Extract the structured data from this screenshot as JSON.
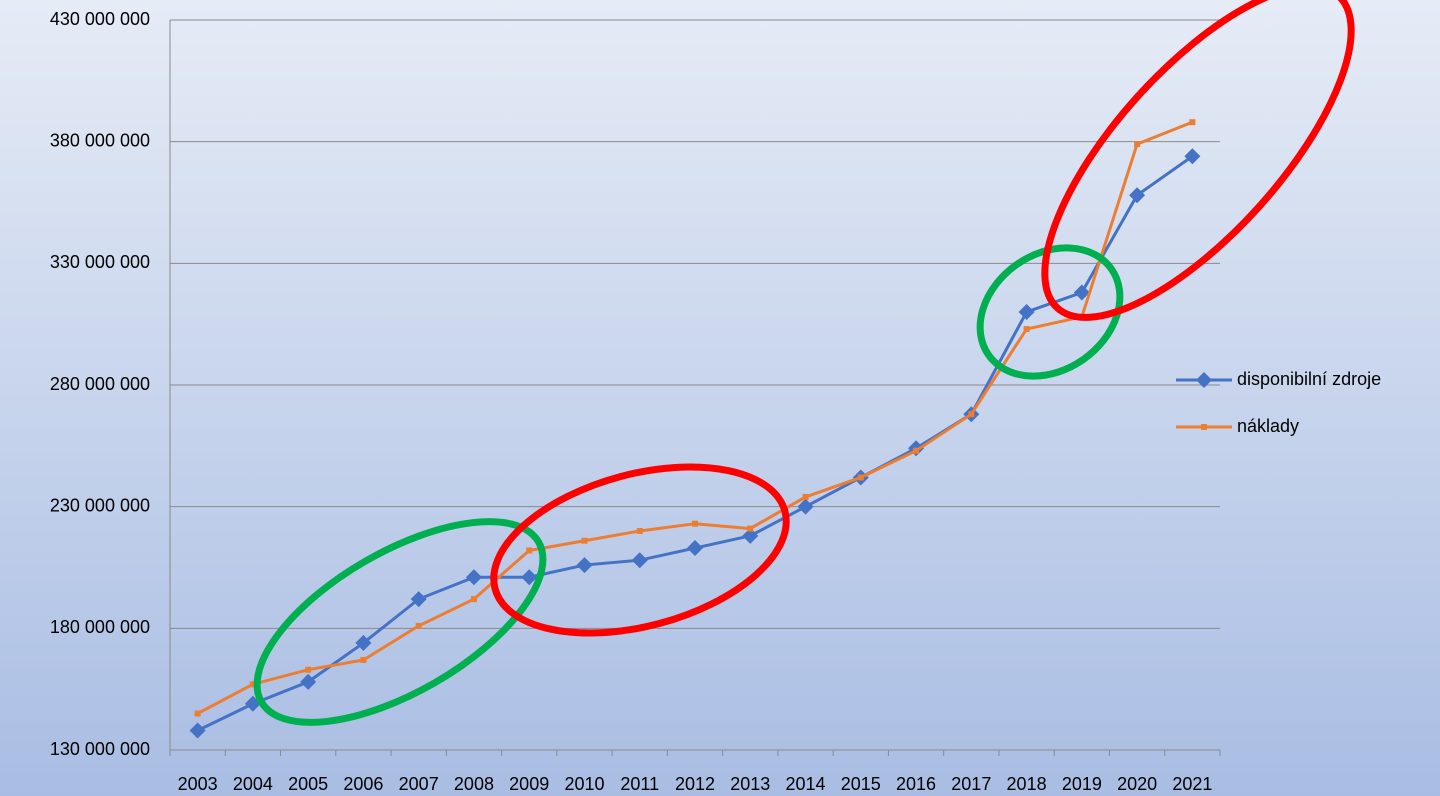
{
  "chart_data": {
    "type": "line",
    "categories": [
      "2003",
      "2004",
      "2005",
      "2006",
      "2007",
      "2008",
      "2009",
      "2010",
      "2011",
      "2012",
      "2013",
      "2014",
      "2015",
      "2016",
      "2017",
      "2018",
      "2019",
      "2020",
      "2021"
    ],
    "series": [
      {
        "name": "disponibilní zdroje",
        "color": "#4472c4",
        "values": [
          138000000,
          149000000,
          158000000,
          174000000,
          192000000,
          201000000,
          201000000,
          206000000,
          208000000,
          213000000,
          218000000,
          230000000,
          242000000,
          254000000,
          268000000,
          310000000,
          318000000,
          358000000,
          374000000
        ]
      },
      {
        "name": "náklady",
        "color": "#ed7d31",
        "values": [
          145000000,
          157000000,
          163000000,
          167000000,
          181000000,
          192000000,
          212000000,
          216000000,
          220000000,
          223000000,
          221000000,
          234000000,
          242000000,
          253000000,
          268000000,
          303000000,
          308000000,
          379000000,
          388000000
        ]
      }
    ],
    "ylim": [
      130000000,
      430000000
    ],
    "yticks": [
      {
        "value": 130000000,
        "label": "130 000 000"
      },
      {
        "value": 180000000,
        "label": "180 000 000"
      },
      {
        "value": 230000000,
        "label": "230 000 000"
      },
      {
        "value": 280000000,
        "label": "280 000 000"
      },
      {
        "value": 330000000,
        "label": "330 000 000"
      },
      {
        "value": 380000000,
        "label": "380 000 000"
      },
      {
        "value": 430000000,
        "label": "430 000 000"
      }
    ],
    "grid": true,
    "legend": "right"
  }
}
